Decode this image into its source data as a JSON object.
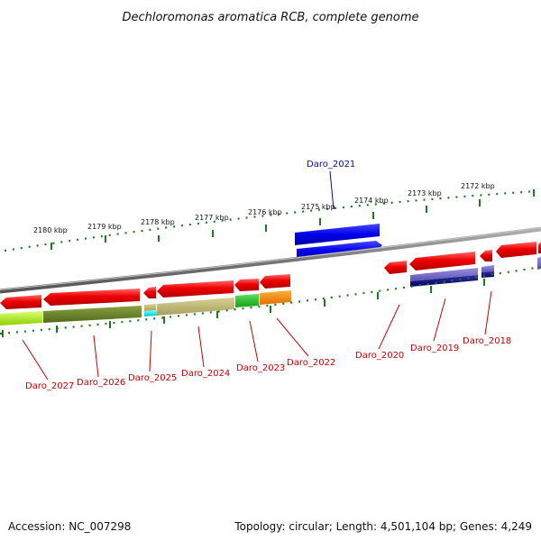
{
  "title": "Dechloromonas aromatica RCB, complete genome",
  "accession": "Accession: NC_007298",
  "topology": "Topology: circular; Length: 4,501,104 bp; Genes: 4,249",
  "colors": {
    "forward_label": "#0a0a9a",
    "reverse_label": "#cc0000",
    "backbone": "#8a8a8a",
    "tick": "#1f7a1f"
  },
  "kbp_ticks": [
    "2180 kbp",
    "2179 kbp",
    "2178 kbp",
    "2177 kbp",
    "2176 kbp",
    "2175 kbp",
    "2174 kbp",
    "2173 kbp",
    "2172 kbp"
  ],
  "gene_labels": [
    "Daro_2021",
    "Daro_2027",
    "Daro_2026",
    "Daro_2025",
    "Daro_2024",
    "Daro_2023",
    "Daro_2022",
    "Daro_2020",
    "Daro_2019",
    "Daro_2018"
  ]
}
